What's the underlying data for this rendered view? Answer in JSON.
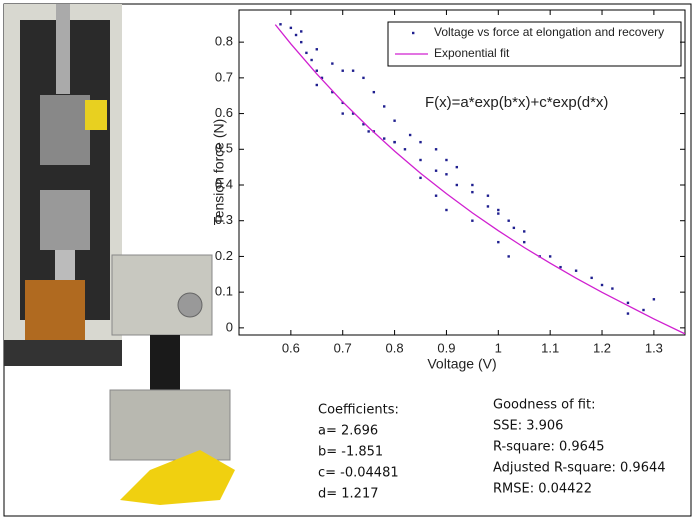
{
  "chart_data": {
    "type": "scatter",
    "xlabel": "Voltage (V)",
    "ylabel": "Tension force (N)",
    "equation": "F(x)=a*exp(b*x)+c*exp(d*x)",
    "xlim": [
      0.5,
      1.36
    ],
    "ylim": [
      -0.02,
      0.89
    ],
    "xticks": [
      0.6,
      0.7,
      0.8,
      0.9,
      1,
      1.1,
      1.2,
      1.3
    ],
    "yticks": [
      0,
      0.1,
      0.2,
      0.3,
      0.4,
      0.5,
      0.6,
      0.7,
      0.8
    ],
    "series": [
      {
        "name": "Voltage vs force at elongation and recovery",
        "type": "scatter",
        "color": "#1f1f8f",
        "x": [
          0.58,
          0.6,
          0.61,
          0.62,
          0.63,
          0.64,
          0.65,
          0.66,
          0.68,
          0.7,
          0.72,
          0.74,
          0.76,
          0.78,
          0.8,
          0.82,
          0.85,
          0.88,
          0.9,
          0.92,
          0.95,
          0.98,
          1.0,
          1.02,
          1.05,
          1.1,
          1.15,
          1.2,
          1.25,
          1.28,
          0.62,
          0.65,
          0.68,
          0.7,
          0.72,
          0.74,
          0.76,
          0.78,
          0.8,
          0.83,
          0.85,
          0.88,
          0.9,
          0.92,
          0.95,
          0.98,
          1.0,
          1.03,
          1.05,
          1.08,
          1.12,
          1.18,
          1.22,
          1.25,
          1.3,
          0.65,
          0.7,
          0.75,
          0.8,
          0.85,
          0.88,
          0.9,
          0.95,
          1.0,
          1.02
        ],
        "values": [
          0.85,
          0.84,
          0.82,
          0.8,
          0.77,
          0.75,
          0.72,
          0.7,
          0.66,
          0.63,
          0.6,
          0.57,
          0.55,
          0.53,
          0.52,
          0.5,
          0.47,
          0.44,
          0.43,
          0.4,
          0.38,
          0.34,
          0.32,
          0.3,
          0.27,
          0.2,
          0.16,
          0.12,
          0.07,
          0.05,
          0.83,
          0.78,
          0.74,
          0.72,
          0.72,
          0.7,
          0.66,
          0.62,
          0.58,
          0.54,
          0.52,
          0.5,
          0.47,
          0.45,
          0.4,
          0.37,
          0.33,
          0.28,
          0.24,
          0.2,
          0.17,
          0.14,
          0.11,
          0.04,
          0.08,
          0.68,
          0.6,
          0.55,
          0.52,
          0.42,
          0.37,
          0.33,
          0.3,
          0.24,
          0.2
        ]
      },
      {
        "name": "Exponential fit",
        "type": "line",
        "color": "#d020d0",
        "x": [
          0.57,
          0.6,
          0.65,
          0.7,
          0.75,
          0.8,
          0.85,
          0.9,
          0.95,
          1.0,
          1.05,
          1.1,
          1.15,
          1.2,
          1.25,
          1.3,
          1.36
        ],
        "values": [
          0.849,
          0.795,
          0.711,
          0.633,
          0.561,
          0.495,
          0.433,
          0.376,
          0.322,
          0.272,
          0.225,
          0.181,
          0.139,
          0.0996,
          0.062,
          0.025,
          -0.017
        ]
      }
    ]
  },
  "coefficients": {
    "title": "Coefficients:",
    "lines": [
      "a= 2.696",
      "b= -1.851",
      "c= -0.04481",
      "d= 1.217"
    ]
  },
  "goodness": {
    "title": "Goodness of fit:",
    "lines": [
      "SSE: 3.906",
      "R-square: 0.9645",
      "Adjusted R-square: 0.9644",
      "RMSE: 0.04422"
    ]
  }
}
